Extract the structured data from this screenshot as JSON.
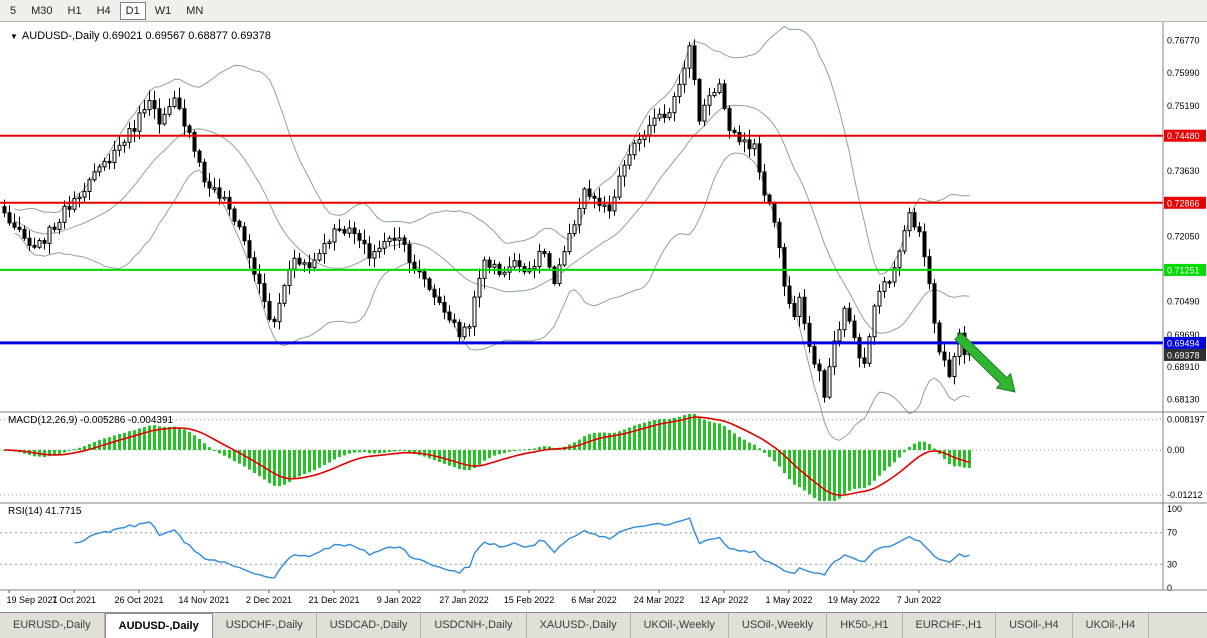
{
  "toolbar": {
    "timeframes": [
      {
        "label": "5",
        "active": false
      },
      {
        "label": "M30",
        "active": false
      },
      {
        "label": "H1",
        "active": false
      },
      {
        "label": "H4",
        "active": false
      },
      {
        "label": "D1",
        "active": true
      },
      {
        "label": "W1",
        "active": false
      },
      {
        "label": "MN",
        "active": false
      }
    ]
  },
  "chart": {
    "dropdown_icon": "▼",
    "ohlc_text": "0.69021 0.69567 0.68877 0.69378"
  },
  "chart_data": {
    "type": "candlestick",
    "title": "AUDUSD-,Daily",
    "symbol": "AUDUSD",
    "timeframe": "Daily",
    "open": "0.69021",
    "high": "0.69567",
    "low": "0.68877",
    "close": "0.69378",
    "candle_count": 194,
    "price_path": [
      [
        0,
        0.726
      ],
      [
        3,
        0.721
      ],
      [
        6,
        0.717
      ],
      [
        10,
        0.723
      ],
      [
        14,
        0.73
      ],
      [
        18,
        0.735
      ],
      [
        22,
        0.741
      ],
      [
        26,
        0.747
      ],
      [
        29,
        0.7545
      ],
      [
        31,
        0.747
      ],
      [
        34,
        0.753
      ],
      [
        37,
        0.746
      ],
      [
        40,
        0.734
      ],
      [
        44,
        0.729
      ],
      [
        47,
        0.723
      ],
      [
        50,
        0.712
      ],
      [
        53,
        0.701
      ],
      [
        54,
        0.6995
      ],
      [
        56,
        0.709
      ],
      [
        58,
        0.716
      ],
      [
        61,
        0.713
      ],
      [
        64,
        0.719
      ],
      [
        67,
        0.723
      ],
      [
        70,
        0.721
      ],
      [
        73,
        0.716
      ],
      [
        76,
        0.719
      ],
      [
        79,
        0.721
      ],
      [
        82,
        0.713
      ],
      [
        85,
        0.708
      ],
      [
        88,
        0.703
      ],
      [
        91,
        0.697
      ],
      [
        93,
        0.7
      ],
      [
        96,
        0.715
      ],
      [
        99,
        0.712
      ],
      [
        102,
        0.714
      ],
      [
        105,
        0.713
      ],
      [
        108,
        0.717
      ],
      [
        110,
        0.709
      ],
      [
        113,
        0.72
      ],
      [
        116,
        0.732
      ],
      [
        118,
        0.729
      ],
      [
        121,
        0.726
      ],
      [
        124,
        0.738
      ],
      [
        127,
        0.744
      ],
      [
        130,
        0.748
      ],
      [
        133,
        0.751
      ],
      [
        136,
        0.762
      ],
      [
        137,
        0.766
      ],
      [
        139,
        0.749
      ],
      [
        141,
        0.755
      ],
      [
        143,
        0.757
      ],
      [
        145,
        0.745
      ],
      [
        147,
        0.744
      ],
      [
        150,
        0.742
      ],
      [
        152,
        0.731
      ],
      [
        154,
        0.725
      ],
      [
        156,
        0.709
      ],
      [
        158,
        0.701
      ],
      [
        159,
        0.706
      ],
      [
        161,
        0.693
      ],
      [
        163,
        0.687
      ],
      [
        164,
        0.683
      ],
      [
        166,
        0.695
      ],
      [
        168,
        0.703
      ],
      [
        170,
        0.696
      ],
      [
        172,
        0.689
      ],
      [
        174,
        0.704
      ],
      [
        176,
        0.709
      ],
      [
        178,
        0.712
      ],
      [
        180,
        0.723
      ],
      [
        181,
        0.727
      ],
      [
        183,
        0.721
      ],
      [
        185,
        0.709
      ],
      [
        187,
        0.693
      ],
      [
        189,
        0.687
      ],
      [
        191,
        0.698
      ],
      [
        192,
        0.693
      ],
      [
        193,
        0.6938
      ]
    ],
    "price_axis_labels": [
      "0.76770",
      "0.75990",
      "0.75190",
      "0.73630",
      "0.72050",
      "0.70490",
      "0.69690",
      "0.68910",
      "0.68130"
    ],
    "h_lines": [
      {
        "value": 0.7448,
        "label": "0.74480",
        "color": "#e80000",
        "width": 2,
        "name": "resistance-line-upper"
      },
      {
        "value": 0.72866,
        "label": "0.72866",
        "color": "#e80000",
        "width": 2,
        "name": "resistance-line-lower"
      },
      {
        "value": 0.71251,
        "label": "0.71251",
        "color": "#00dc00",
        "width": 2,
        "name": "support-line-green"
      },
      {
        "value": 0.69494,
        "label": "0.69494",
        "color": "#0000e0",
        "width": 3,
        "name": "support-line-blue"
      }
    ],
    "current_price_tag": {
      "label": "0.69378",
      "color": "#2f2f2f"
    },
    "indicators": {
      "bollinger": {
        "period": 20,
        "deviation": 2
      },
      "macd": {
        "label": "MACD(12,26,9)",
        "values": "-0.005286 -0.004391",
        "axis": [
          {
            "value": 0.008197,
            "label": "0.008197"
          },
          {
            "value": 0,
            "label": "0.00"
          },
          {
            "value": -0.01212,
            "label": "-0.01212"
          }
        ]
      },
      "rsi": {
        "label": "RSI(14)",
        "value": "41.7715",
        "axis": [
          {
            "value": 100,
            "label": "100",
            "level": false
          },
          {
            "value": 70,
            "label": "70",
            "level": true
          },
          {
            "value": 30,
            "label": "30",
            "level": true
          },
          {
            "value": 0,
            "label": "0",
            "level": false
          }
        ]
      }
    },
    "x_axis": {
      "dates": [
        "19 Sep 2021",
        "7 Oct 2021",
        "26 Oct 2021",
        "14 Nov 2021",
        "2 Dec 2021",
        "21 Dec 2021",
        "9 Jan 2022",
        "27 Jan 2022",
        "15 Feb 2022",
        "6 Mar 2022",
        "24 Mar 2022",
        "12 Apr 2022",
        "1 May 2022",
        "19 May 2022",
        "7 Jun 2022"
      ]
    },
    "annotation": {
      "type": "arrow",
      "direction": "down-right",
      "color": "#2fb52f",
      "border": "#1e7d1e"
    },
    "colors": {
      "candle_up": "#ffffff",
      "candle_down": "#000000",
      "wick": "#000000",
      "bollinger": "#8aa88a",
      "macd": "#26c226",
      "macd_signal": "#e00000",
      "rsi": "#2e8be0"
    }
  },
  "tabs": {
    "items": [
      {
        "label": "EURUSD-,Daily",
        "active": false
      },
      {
        "label": "AUDUSD-,Daily",
        "active": true
      },
      {
        "label": "USDCHF-,Daily",
        "active": false
      },
      {
        "label": "USDCAD-,Daily",
        "active": false
      },
      {
        "label": "USDCNH-,Daily",
        "active": false
      },
      {
        "label": "XAUUSD-,Daily",
        "active": false
      },
      {
        "label": "UKOil-,Weekly",
        "active": false
      },
      {
        "label": "USOil-,Weekly",
        "active": false
      },
      {
        "label": "HK50-,H1",
        "active": false
      },
      {
        "label": "EURCHF-,H1",
        "active": false
      },
      {
        "label": "USOil-,H4",
        "active": false
      },
      {
        "label": "UKOil-,H4",
        "active": false
      }
    ]
  }
}
